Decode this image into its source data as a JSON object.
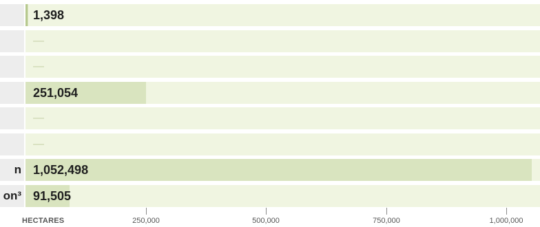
{
  "chart_data": {
    "type": "bar",
    "orientation": "horizontal",
    "categories": [
      "",
      "",
      "",
      "",
      "",
      "",
      "n",
      "on³"
    ],
    "values": [
      1398,
      null,
      null,
      251054,
      null,
      null,
      1052498,
      91505
    ],
    "value_labels": [
      "1,398",
      "—",
      "—",
      "251,054",
      "—",
      "—",
      "1,052,498",
      "91,505"
    ],
    "xlabel": "HECTARES",
    "xlim": [
      0,
      1070000
    ],
    "x_ticks": [
      250000,
      500000,
      750000,
      1000000
    ],
    "x_tick_labels": [
      "250,000",
      "500,000",
      "750,000",
      "1,000,000"
    ],
    "bar_color": "#d9e4bf",
    "track_color": "#f0f5e1",
    "label_cell_color": "#ededed"
  }
}
